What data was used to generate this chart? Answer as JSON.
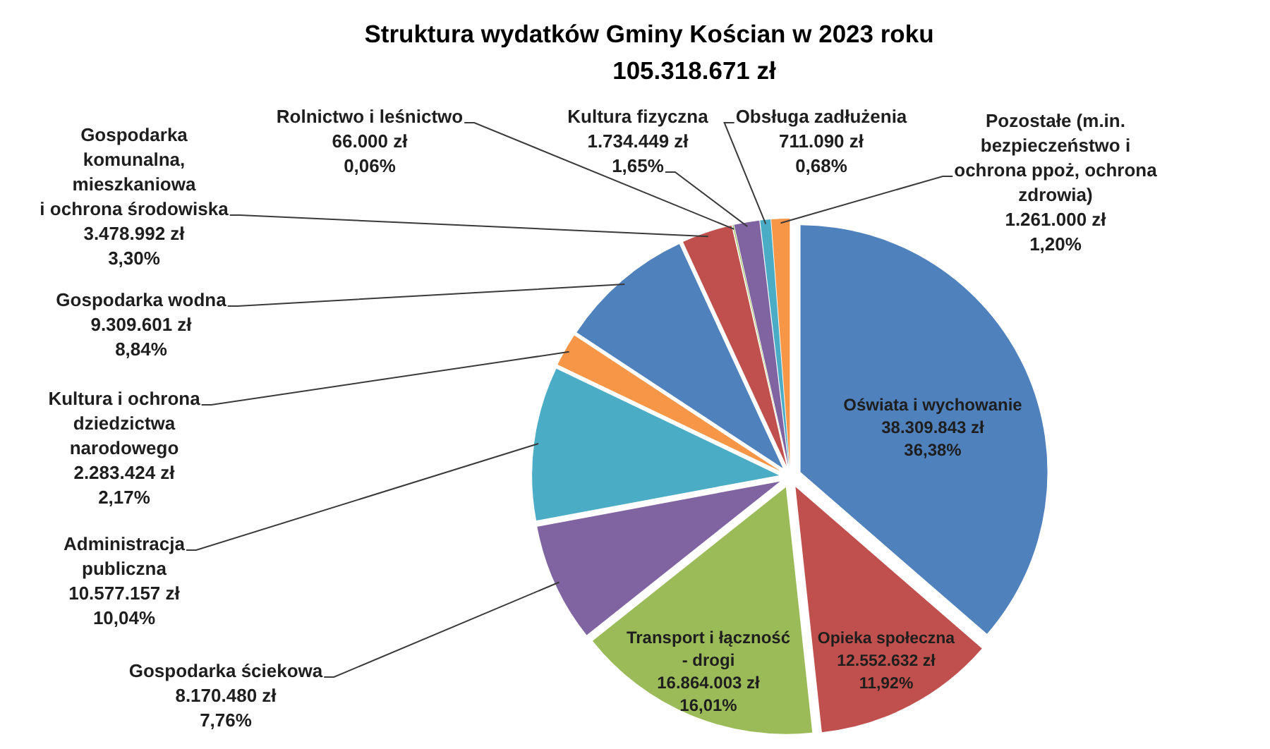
{
  "chart_data": {
    "type": "pie",
    "title": "Struktura wydatków Gminy Kościan w 2023 roku",
    "subtitle": "105.318.671 zł",
    "categories": [
      "Oświata i wychowanie",
      "Opieka społeczna",
      "Transport i łączność - drogi",
      "Gospodarka ściekowa",
      "Administracja publiczna",
      "Kultura i ochrona dziedzictwa narodowego",
      "Gospodarka wodna",
      "Gospodarka komunalna, mieszkaniowa i ochrona środowiska",
      "Rolnictwo i leśnictwo",
      "Kultura fizyczna",
      "Obsługa zadłużenia",
      "Pozostałe (m.in. bezpieczeństwo i ochrona ppoż, ochrona zdrowia)"
    ],
    "values": [
      38309843,
      12552632,
      16864003,
      8170480,
      10577157,
      2283424,
      9309601,
      3478992,
      66000,
      1734449,
      711090,
      1261000
    ],
    "value_labels": [
      "38.309.843 zł\n36,38%",
      "12.552.632 zł\n11,92%",
      "16.864.003 zł\n16,01%",
      "8.170.480 zł\n7,76%",
      "10.577.157 zł\n10,04%",
      "2.283.424 zł\n2,17%",
      "9.309.601 zł\n8,84%",
      "3.478.992 zł\n3,30%",
      "66.000 zł\n0,06%",
      "1.734.449 zł\n1,65%",
      "711.090 zł\n0,68%",
      "1.261.000 zł\n1,20%"
    ],
    "colors": [
      "#4f81bd",
      "#c0504d",
      "#9bbb59",
      "#8064a2",
      "#4bacc6",
      "#f79646",
      "#4f81bd",
      "#c0504d",
      "#9bbb59",
      "#8064a2",
      "#4bacc6",
      "#f79646"
    ]
  }
}
